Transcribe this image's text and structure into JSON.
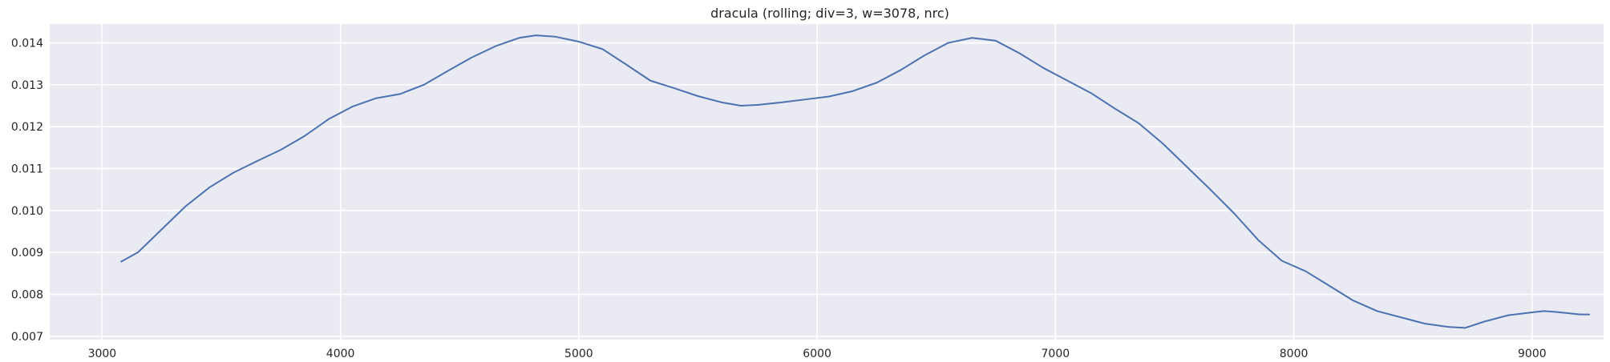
{
  "chart_data": {
    "type": "line",
    "title": "dracula  (rolling; div=3, w=3078, nrc)",
    "xlabel": "",
    "ylabel": "",
    "xlim": [
      2780,
      9300
    ],
    "ylim": [
      0.00692,
      0.01445
    ],
    "xticks": [
      3000,
      4000,
      5000,
      6000,
      7000,
      8000,
      9000
    ],
    "xtick_labels": [
      "3000",
      "4000",
      "5000",
      "6000",
      "7000",
      "8000",
      "9000"
    ],
    "yticks": [
      0.007,
      0.008,
      0.009,
      0.01,
      0.011,
      0.012,
      0.013,
      0.014
    ],
    "ytick_labels": [
      "0.007",
      "0.008",
      "0.009",
      "0.010",
      "0.011",
      "0.012",
      "0.013",
      "0.014"
    ],
    "grid": true,
    "colors": {
      "background": "#eaeaf2",
      "grid": "#ffffff",
      "line": "#4c72b0",
      "text": "#262626"
    },
    "series": [
      {
        "x": [
          3080,
          3150,
          3250,
          3350,
          3450,
          3550,
          3650,
          3750,
          3850,
          3950,
          4050,
          4150,
          4250,
          4350,
          4450,
          4550,
          4650,
          4750,
          4820,
          4900,
          5000,
          5100,
          5200,
          5300,
          5400,
          5500,
          5600,
          5680,
          5750,
          5850,
          5950,
          6050,
          6150,
          6250,
          6350,
          6450,
          6550,
          6650,
          6750,
          6850,
          6950,
          7050,
          7150,
          7250,
          7350,
          7450,
          7550,
          7650,
          7750,
          7850,
          7950,
          8050,
          8150,
          8250,
          8350,
          8450,
          8550,
          8650,
          8720,
          8800,
          8900,
          9000,
          9050,
          9100,
          9150,
          9200,
          9240
        ],
        "y": [
          0.00878,
          0.009,
          0.00955,
          0.0101,
          0.01055,
          0.0109,
          0.01118,
          0.01145,
          0.01178,
          0.01218,
          0.01248,
          0.01268,
          0.01278,
          0.013,
          0.01333,
          0.01365,
          0.01392,
          0.01412,
          0.01418,
          0.01415,
          0.01403,
          0.01385,
          0.01348,
          0.0131,
          0.01292,
          0.01273,
          0.01258,
          0.0125,
          0.01252,
          0.01258,
          0.01265,
          0.01272,
          0.01285,
          0.01305,
          0.01335,
          0.0137,
          0.014,
          0.01412,
          0.01405,
          0.01375,
          0.0134,
          0.0131,
          0.0128,
          0.01243,
          0.01208,
          0.0116,
          0.01105,
          0.0105,
          0.00993,
          0.0093,
          0.0088,
          0.00855,
          0.0082,
          0.00785,
          0.0076,
          0.00745,
          0.0073,
          0.00722,
          0.0072,
          0.00735,
          0.0075,
          0.00757,
          0.0076,
          0.00758,
          0.00755,
          0.00752,
          0.00752
        ]
      }
    ]
  }
}
